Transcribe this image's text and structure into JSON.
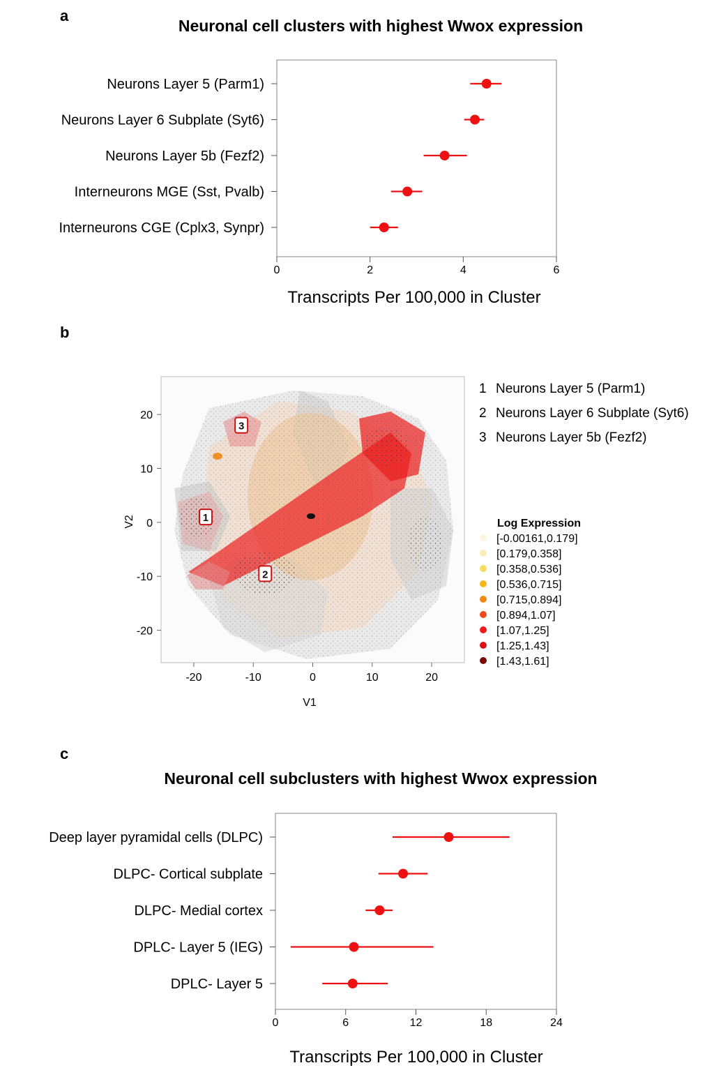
{
  "panel_letters": {
    "a": "a",
    "b": "b",
    "c": "c"
  },
  "chart_data": [
    {
      "type": "scatter",
      "subtype": "dot-with-error-bars",
      "title": "Neuronal cell clusters with highest Wwox expression",
      "xlabel": "Transcripts Per 100,000 in Cluster",
      "ylabel": "",
      "xlim": [
        0,
        6
      ],
      "xticks": [
        0,
        2,
        4,
        6
      ],
      "grid": false,
      "color": "#ee1111",
      "categories": [
        "Neurons Layer 5 (Parm1)",
        "Neurons Layer 6 Subplate (Syt6)",
        "Neurons Layer 5b (Fezf2)",
        "Interneurons MGE (Sst, Pvalb)",
        "Interneurons CGE (Cplx3, Synpr)"
      ],
      "values": [
        4.5,
        4.25,
        3.6,
        2.8,
        2.3
      ],
      "lower": [
        4.15,
        4.02,
        3.15,
        2.45,
        2.0
      ],
      "upper": [
        4.82,
        4.45,
        4.08,
        3.12,
        2.6
      ]
    },
    {
      "type": "scatter",
      "subtype": "tsne-cluster-map",
      "xlabel": "V1",
      "ylabel": "V2",
      "xlim": [
        -25.5,
        25.5
      ],
      "ylim": [
        -26,
        27
      ],
      "xticks": [
        -20,
        -10,
        0,
        10,
        20
      ],
      "yticks": [
        20,
        10,
        0,
        -10,
        -20
      ],
      "cluster_labels": [
        {
          "id": "1",
          "name": "Neurons Layer 5 (Parm1)",
          "x": -18,
          "y": 1
        },
        {
          "id": "2",
          "name": "Neurons Layer 6 Subplate (Syt6)",
          "x": -8,
          "y": -9.5
        },
        {
          "id": "3",
          "name": "Neurons Layer 5b (Fezf2)",
          "x": -12,
          "y": 18
        }
      ],
      "legend_title": "Log Expression",
      "legend": [
        {
          "label": "[-0.00161,0.179]",
          "color": "#fdf6e3"
        },
        {
          "label": "[0.179,0.358]",
          "color": "#fbecb8"
        },
        {
          "label": "[0.358,0.536]",
          "color": "#f8dc60"
        },
        {
          "label": "[0.536,0.715]",
          "color": "#f4b81c"
        },
        {
          "label": "[0.715,0.894]",
          "color": "#f08a14"
        },
        {
          "label": "[0.894,1.07]",
          "color": "#f04a1a"
        },
        {
          "label": "[1.07,1.25]",
          "color": "#ee1c1c"
        },
        {
          "label": "[1.25,1.43]",
          "color": "#d81418"
        },
        {
          "label": "[1.43,1.61]",
          "color": "#7a0c0c"
        }
      ]
    },
    {
      "type": "scatter",
      "subtype": "dot-with-error-bars",
      "title": "Neuronal cell subclusters with highest Wwox expression",
      "xlabel": "Transcripts Per 100,000 in Cluster",
      "ylabel": "",
      "xlim": [
        0,
        24
      ],
      "xticks": [
        0,
        6,
        12,
        18,
        24
      ],
      "grid": false,
      "color": "#ee1111",
      "categories": [
        "Deep layer pyramidal cells (DLPC)",
        "DLPC- Cortical subplate",
        "DLPC- Medial cortex",
        "DPLC- Layer 5 (IEG)",
        "DPLC- Layer 5"
      ],
      "values": [
        14.8,
        10.9,
        8.9,
        6.7,
        6.6
      ],
      "lower": [
        10.0,
        8.8,
        7.7,
        1.3,
        4.0
      ],
      "upper": [
        20.0,
        13.0,
        10.0,
        13.5,
        9.6
      ]
    }
  ]
}
